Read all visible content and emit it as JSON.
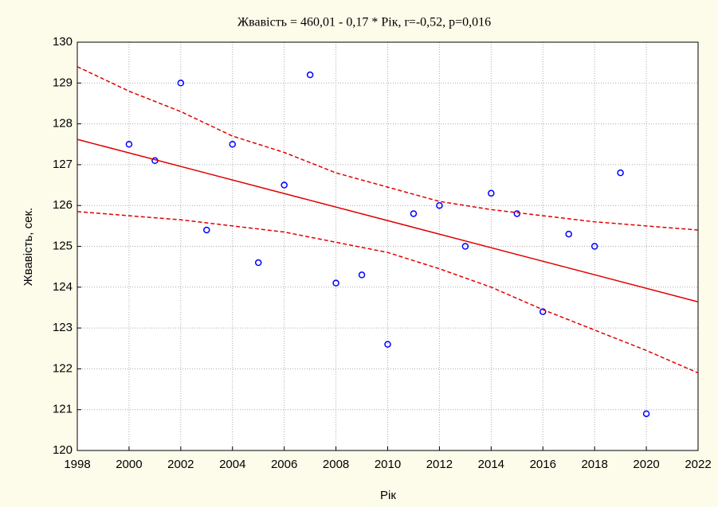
{
  "chart_data": {
    "type": "scatter",
    "title": "Жвавість = 460,01 - 0,17  * Рік, r=-0,52, p=0,016",
    "xlabel": "Рік",
    "ylabel": "Жвавість, сек.",
    "xlim": [
      1998,
      2022
    ],
    "ylim": [
      120,
      130
    ],
    "xticks": [
      1998,
      2000,
      2002,
      2004,
      2006,
      2008,
      2010,
      2012,
      2014,
      2016,
      2018,
      2020,
      2022
    ],
    "yticks": [
      120,
      121,
      122,
      123,
      124,
      125,
      126,
      127,
      128,
      129,
      130
    ],
    "grid": true,
    "series": [
      {
        "type": "scatter",
        "color": "#0000ff",
        "x": [
          2000,
          2001,
          2002,
          2003,
          2004,
          2005,
          2006,
          2007,
          2008,
          2009,
          2010,
          2011,
          2012,
          2013,
          2014,
          2015,
          2016,
          2017,
          2018,
          2019,
          2020
        ],
        "values": [
          127.5,
          127.1,
          129.0,
          125.4,
          127.5,
          124.6,
          126.5,
          129.2,
          124.1,
          124.3,
          122.6,
          125.8,
          126.0,
          125.0,
          126.3,
          125.8,
          123.4,
          125.3,
          125.0,
          126.8,
          120.9
        ]
      },
      {
        "type": "line",
        "color": "#e00000",
        "dash": false,
        "x": [
          1998,
          2022
        ],
        "values": [
          127.62,
          123.64
        ]
      },
      {
        "type": "line",
        "color": "#e00000",
        "dash": true,
        "x": [
          1998,
          2000,
          2002,
          2004,
          2006,
          2008,
          2010,
          2012,
          2014,
          2016,
          2018,
          2020,
          2022
        ],
        "values": [
          129.4,
          128.8,
          128.3,
          127.7,
          127.3,
          126.8,
          126.45,
          126.1,
          125.9,
          125.75,
          125.6,
          125.5,
          125.4
        ]
      },
      {
        "type": "line",
        "color": "#e00000",
        "dash": true,
        "x": [
          1998,
          2000,
          2002,
          2004,
          2006,
          2008,
          2010,
          2012,
          2014,
          2016,
          2018,
          2020,
          2022
        ],
        "values": [
          125.85,
          125.75,
          125.65,
          125.5,
          125.35,
          125.1,
          124.85,
          124.45,
          124.0,
          123.45,
          122.95,
          122.45,
          121.9
        ]
      }
    ]
  }
}
